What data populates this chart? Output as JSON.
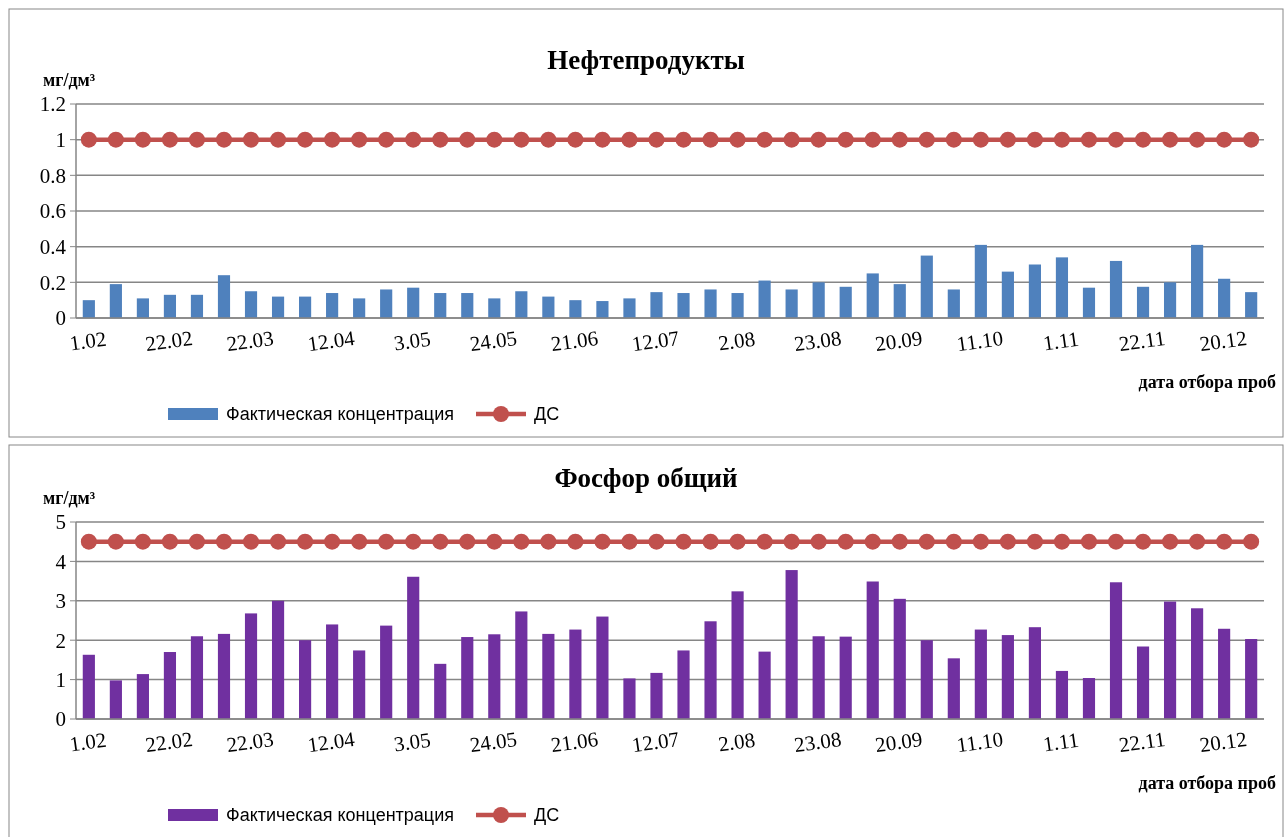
{
  "chart_data": [
    {
      "type": "bar",
      "title": "Нефтепродукты",
      "ylabel": "мг/дм³",
      "xlabel": "дата отбора проб",
      "categories": [
        "1.02",
        null,
        null,
        "22.02",
        null,
        null,
        "22.03",
        null,
        null,
        "12.04",
        null,
        null,
        "3.05",
        null,
        null,
        "24.05",
        null,
        null,
        "21.06",
        null,
        null,
        "12.07",
        null,
        null,
        "2.08",
        null,
        null,
        "23.08",
        null,
        null,
        "20.09",
        null,
        null,
        "11.10",
        null,
        null,
        "1.11",
        null,
        null,
        "22.11",
        null,
        null,
        "20.12",
        null
      ],
      "ylim": [
        0,
        1.2
      ],
      "yticks": [
        0,
        0.2,
        0.4,
        0.6,
        0.8,
        1,
        1.2
      ],
      "grid": "y",
      "legend": "bottom",
      "series": [
        {
          "name": "Фактическая концентрация",
          "color": "#4f81bd",
          "values": [
            0.1,
            0.19,
            0.11,
            0.13,
            0.13,
            0.24,
            0.15,
            0.12,
            0.12,
            0.14,
            0.11,
            0.16,
            0.17,
            0.14,
            0.14,
            0.11,
            0.15,
            0.12,
            0.1,
            0.095,
            0.11,
            0.145,
            0.14,
            0.16,
            0.14,
            0.21,
            0.16,
            0.2,
            0.175,
            0.25,
            0.19,
            0.35,
            0.16,
            0.41,
            0.26,
            0.3,
            0.34,
            0.17,
            0.32,
            0.175,
            0.2,
            0.41,
            0.22,
            0.145
          ]
        },
        {
          "type": "line",
          "name": "ДС",
          "color": "#c0504d",
          "marker": "circle",
          "values": [
            1,
            1,
            1,
            1,
            1,
            1,
            1,
            1,
            1,
            1,
            1,
            1,
            1,
            1,
            1,
            1,
            1,
            1,
            1,
            1,
            1,
            1,
            1,
            1,
            1,
            1,
            1,
            1,
            1,
            1,
            1,
            1,
            1,
            1,
            1,
            1,
            1,
            1,
            1,
            1,
            1,
            1,
            1,
            1
          ]
        }
      ]
    },
    {
      "type": "bar",
      "title": "Фосфор общий",
      "ylabel": "мг/дм³",
      "xlabel": "дата отбора проб",
      "categories": [
        "1.02",
        null,
        null,
        "22.02",
        null,
        null,
        "22.03",
        null,
        null,
        "12.04",
        null,
        null,
        "3.05",
        null,
        null,
        "24.05",
        null,
        null,
        "21.06",
        null,
        null,
        "12.07",
        null,
        null,
        "2.08",
        null,
        null,
        "23.08",
        null,
        null,
        "20.09",
        null,
        null,
        "11.10",
        null,
        null,
        "1.11",
        null,
        null,
        "22.11",
        null,
        null,
        "20.12",
        null
      ],
      "ylim": [
        0,
        5
      ],
      "yticks": [
        0,
        1,
        2,
        3,
        4,
        5
      ],
      "grid": "y",
      "legend": "bottom",
      "series": [
        {
          "name": "Фактическая концентрация",
          "color": "#7030a0",
          "values": [
            1.63,
            0.98,
            1.14,
            1.7,
            2.1,
            2.16,
            2.68,
            3.0,
            2.0,
            2.4,
            1.74,
            2.37,
            3.61,
            1.4,
            2.08,
            2.15,
            2.73,
            2.16,
            2.27,
            2.6,
            1.03,
            1.17,
            1.74,
            2.48,
            3.24,
            1.71,
            3.78,
            2.1,
            2.09,
            3.49,
            3.05,
            2.0,
            1.54,
            2.27,
            2.13,
            2.33,
            1.22,
            1.04,
            3.47,
            1.84,
            2.98,
            2.81,
            2.29,
            2.03
          ]
        },
        {
          "type": "line",
          "name": "ДС",
          "color": "#c0504d",
          "marker": "circle",
          "values": [
            4.5,
            4.5,
            4.5,
            4.5,
            4.5,
            4.5,
            4.5,
            4.5,
            4.5,
            4.5,
            4.5,
            4.5,
            4.5,
            4.5,
            4.5,
            4.5,
            4.5,
            4.5,
            4.5,
            4.5,
            4.5,
            4.5,
            4.5,
            4.5,
            4.5,
            4.5,
            4.5,
            4.5,
            4.5,
            4.5,
            4.5,
            4.5,
            4.5,
            4.5,
            4.5,
            4.5,
            4.5,
            4.5,
            4.5,
            4.5,
            4.5,
            4.5,
            4.5,
            4.5
          ]
        }
      ]
    }
  ]
}
